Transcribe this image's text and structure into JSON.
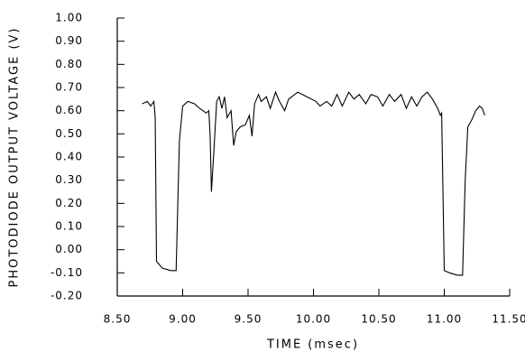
{
  "chart_data": {
    "type": "line",
    "xlabel": "TIME (msec)",
    "ylabel": "PHOTODIODE OUTPUT VOLTAGE (V)",
    "x": [
      8.69,
      8.73,
      8.755,
      8.78,
      8.79,
      8.8,
      8.845,
      8.91,
      8.95,
      8.975,
      9.0,
      9.04,
      9.09,
      9.13,
      9.18,
      9.2,
      9.21,
      9.22,
      9.24,
      9.26,
      9.28,
      9.3,
      9.32,
      9.34,
      9.37,
      9.39,
      9.41,
      9.44,
      9.48,
      9.51,
      9.53,
      9.55,
      9.58,
      9.6,
      9.64,
      9.67,
      9.71,
      9.74,
      9.78,
      9.81,
      9.88,
      9.95,
      10.02,
      10.05,
      10.1,
      10.14,
      10.18,
      10.22,
      10.27,
      10.31,
      10.35,
      10.4,
      10.44,
      10.49,
      10.53,
      10.58,
      10.62,
      10.67,
      10.71,
      10.75,
      10.79,
      10.83,
      10.87,
      10.91,
      10.95,
      10.97,
      10.98,
      11.0,
      11.04,
      11.1,
      11.14,
      11.16,
      11.18,
      11.21,
      11.24,
      11.27,
      11.29,
      11.31
    ],
    "values": [
      0.63,
      0.64,
      0.62,
      0.64,
      0.57,
      -0.05,
      -0.08,
      -0.09,
      -0.09,
      0.47,
      0.62,
      0.64,
      0.63,
      0.61,
      0.59,
      0.6,
      0.49,
      0.25,
      0.44,
      0.64,
      0.66,
      0.61,
      0.66,
      0.57,
      0.6,
      0.45,
      0.51,
      0.53,
      0.54,
      0.58,
      0.49,
      0.63,
      0.67,
      0.64,
      0.66,
      0.61,
      0.68,
      0.64,
      0.6,
      0.65,
      0.68,
      0.66,
      0.64,
      0.62,
      0.64,
      0.62,
      0.67,
      0.62,
      0.68,
      0.65,
      0.67,
      0.63,
      0.67,
      0.66,
      0.62,
      0.67,
      0.64,
      0.67,
      0.61,
      0.66,
      0.62,
      0.66,
      0.68,
      0.65,
      0.61,
      0.58,
      0.59,
      -0.09,
      -0.1,
      -0.11,
      -0.11,
      0.3,
      0.53,
      0.56,
      0.6,
      0.62,
      0.61,
      0.58
    ],
    "color": "#000000",
    "xlim": [
      8.5,
      11.5
    ],
    "xticks": [
      {
        "value": 8.5,
        "label": "8.50"
      },
      {
        "value": 9.0,
        "label": "9.00"
      },
      {
        "value": 9.5,
        "label": "9.50"
      },
      {
        "value": 10.0,
        "label": "10.00"
      },
      {
        "value": 10.5,
        "label": "10.50"
      },
      {
        "value": 11.0,
        "label": "11.00"
      },
      {
        "value": 11.5,
        "label": "11.50"
      }
    ],
    "ylim": [
      -0.2,
      1.0
    ],
    "yticks": [
      {
        "value": -0.2,
        "label": "-0.20"
      },
      {
        "value": -0.1,
        "label": "-0.10"
      },
      {
        "value": 0,
        "label": "0.00"
      },
      {
        "value": 0.1,
        "label": "0.10"
      },
      {
        "value": 0.2,
        "label": "0.20"
      },
      {
        "value": 0.3,
        "label": "0.30"
      },
      {
        "value": 0.4,
        "label": "0.40"
      },
      {
        "value": 0.5,
        "label": "0.50"
      },
      {
        "value": 0.6,
        "label": "0.60"
      },
      {
        "value": 0.7,
        "label": "0.70"
      },
      {
        "value": 0.8,
        "label": "0.80"
      },
      {
        "value": 0.9,
        "label": "0.90"
      },
      {
        "value": 1.0,
        "label": "1.00"
      }
    ],
    "grid": false
  }
}
